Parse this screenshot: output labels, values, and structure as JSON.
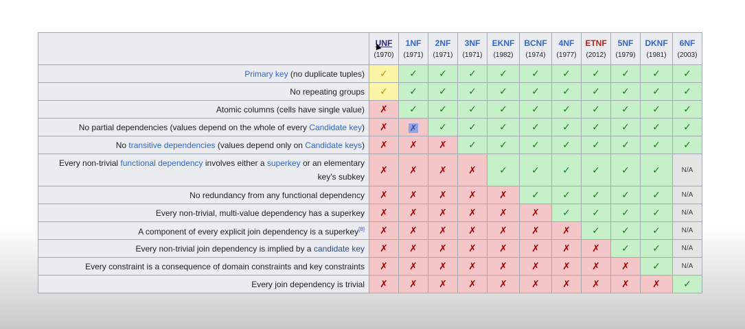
{
  "columns": [
    {
      "name": "UNF",
      "year": "(1970)"
    },
    {
      "name": "1NF",
      "year": "(1971)"
    },
    {
      "name": "2NF",
      "year": "(1971)"
    },
    {
      "name": "3NF",
      "year": "(1971)"
    },
    {
      "name": "EKNF",
      "year": "(1982)"
    },
    {
      "name": "BCNF",
      "year": "(1974)"
    },
    {
      "name": "4NF",
      "year": "(1977)"
    },
    {
      "name": "ETNF",
      "year": "(2012)"
    },
    {
      "name": "5NF",
      "year": "(1979)"
    },
    {
      "name": "DKNF",
      "year": "(1981)"
    },
    {
      "name": "6NF",
      "year": "(2003)"
    }
  ],
  "rows": [
    {
      "label_parts": [
        {
          "text": "Primary key",
          "link": true
        },
        {
          "text": " (no duplicate tuples)"
        }
      ],
      "cells": [
        "p",
        "y",
        "y",
        "y",
        "y",
        "y",
        "y",
        "y",
        "y",
        "y",
        "y"
      ]
    },
    {
      "label_parts": [
        {
          "text": "No repeating groups"
        }
      ],
      "cells": [
        "p",
        "y",
        "y",
        "y",
        "y",
        "y",
        "y",
        "y",
        "y",
        "y",
        "y"
      ]
    },
    {
      "label_parts": [
        {
          "text": "Atomic columns (cells have single value)"
        }
      ],
      "cells": [
        "n",
        "y",
        "y",
        "y",
        "y",
        "y",
        "y",
        "y",
        "y",
        "y",
        "y"
      ]
    },
    {
      "label_parts": [
        {
          "text": "No partial dependencies (values depend on the whole of every "
        },
        {
          "text": "Candidate key",
          "link": true
        },
        {
          "text": ")"
        }
      ],
      "cells": [
        "n",
        "sel",
        "y",
        "y",
        "y",
        "y",
        "y",
        "y",
        "y",
        "y",
        "y"
      ]
    },
    {
      "label_parts": [
        {
          "text": "No "
        },
        {
          "text": "transitive dependencies",
          "link": true
        },
        {
          "text": " (values depend only on "
        },
        {
          "text": "Candidate keys",
          "link": true
        },
        {
          "text": ")"
        }
      ],
      "cells": [
        "n",
        "n",
        "n",
        "y",
        "y",
        "y",
        "y",
        "y",
        "y",
        "y",
        "y"
      ]
    },
    {
      "label_parts": [
        {
          "text": "Every non-trivial "
        },
        {
          "text": "functional dependency",
          "link": true
        },
        {
          "text": " involves either a "
        },
        {
          "text": "superkey",
          "link": true
        },
        {
          "text": " or an elementary key's subkey"
        }
      ],
      "cells": [
        "n",
        "n",
        "n",
        "n",
        "y",
        "y",
        "y",
        "y",
        "y",
        "y",
        "na"
      ]
    },
    {
      "label_parts": [
        {
          "text": "No redundancy from any functional dependency"
        }
      ],
      "cells": [
        "n",
        "n",
        "n",
        "n",
        "n",
        "y",
        "y",
        "y",
        "y",
        "y",
        "na"
      ]
    },
    {
      "label_parts": [
        {
          "text": "Every non-trivial, multi-value dependency has a superkey"
        }
      ],
      "cells": [
        "n",
        "n",
        "n",
        "n",
        "n",
        "n",
        "y",
        "y",
        "y",
        "y",
        "na"
      ]
    },
    {
      "label_parts": [
        {
          "text": "A component of every explicit join dependency is a superkey"
        },
        {
          "text": "[8]",
          "sup": true
        }
      ],
      "cells": [
        "n",
        "n",
        "n",
        "n",
        "n",
        "n",
        "n",
        "y",
        "y",
        "y",
        "na"
      ]
    },
    {
      "label_parts": [
        {
          "text": "Every non-trivial join dependency is implied by a "
        },
        {
          "text": "candidate key",
          "link": true,
          "dark": true
        }
      ],
      "cells": [
        "n",
        "n",
        "n",
        "n",
        "n",
        "n",
        "n",
        "n",
        "y",
        "y",
        "na"
      ]
    },
    {
      "label_parts": [
        {
          "text": "Every constraint is a consequence of domain constraints and key constraints"
        }
      ],
      "cells": [
        "n",
        "n",
        "n",
        "n",
        "n",
        "n",
        "n",
        "n",
        "n",
        "y",
        "na"
      ]
    },
    {
      "label_parts": [
        {
          "text": "Every join dependency is trivial"
        }
      ],
      "cells": [
        "n",
        "n",
        "n",
        "n",
        "n",
        "n",
        "n",
        "n",
        "n",
        "n",
        "y"
      ]
    }
  ],
  "symbols": {
    "y": "✓",
    "n": "✗",
    "p": "✓",
    "sel": "✗",
    "na": "N/A"
  },
  "colors": {
    "yes_bg": "#c6f1c8",
    "no_bg": "#f4c6c8",
    "partial_bg": "#fbf5a8",
    "na_bg": "#e4e4e4",
    "link": "#3366cc",
    "etnf_header": "#b32424"
  }
}
